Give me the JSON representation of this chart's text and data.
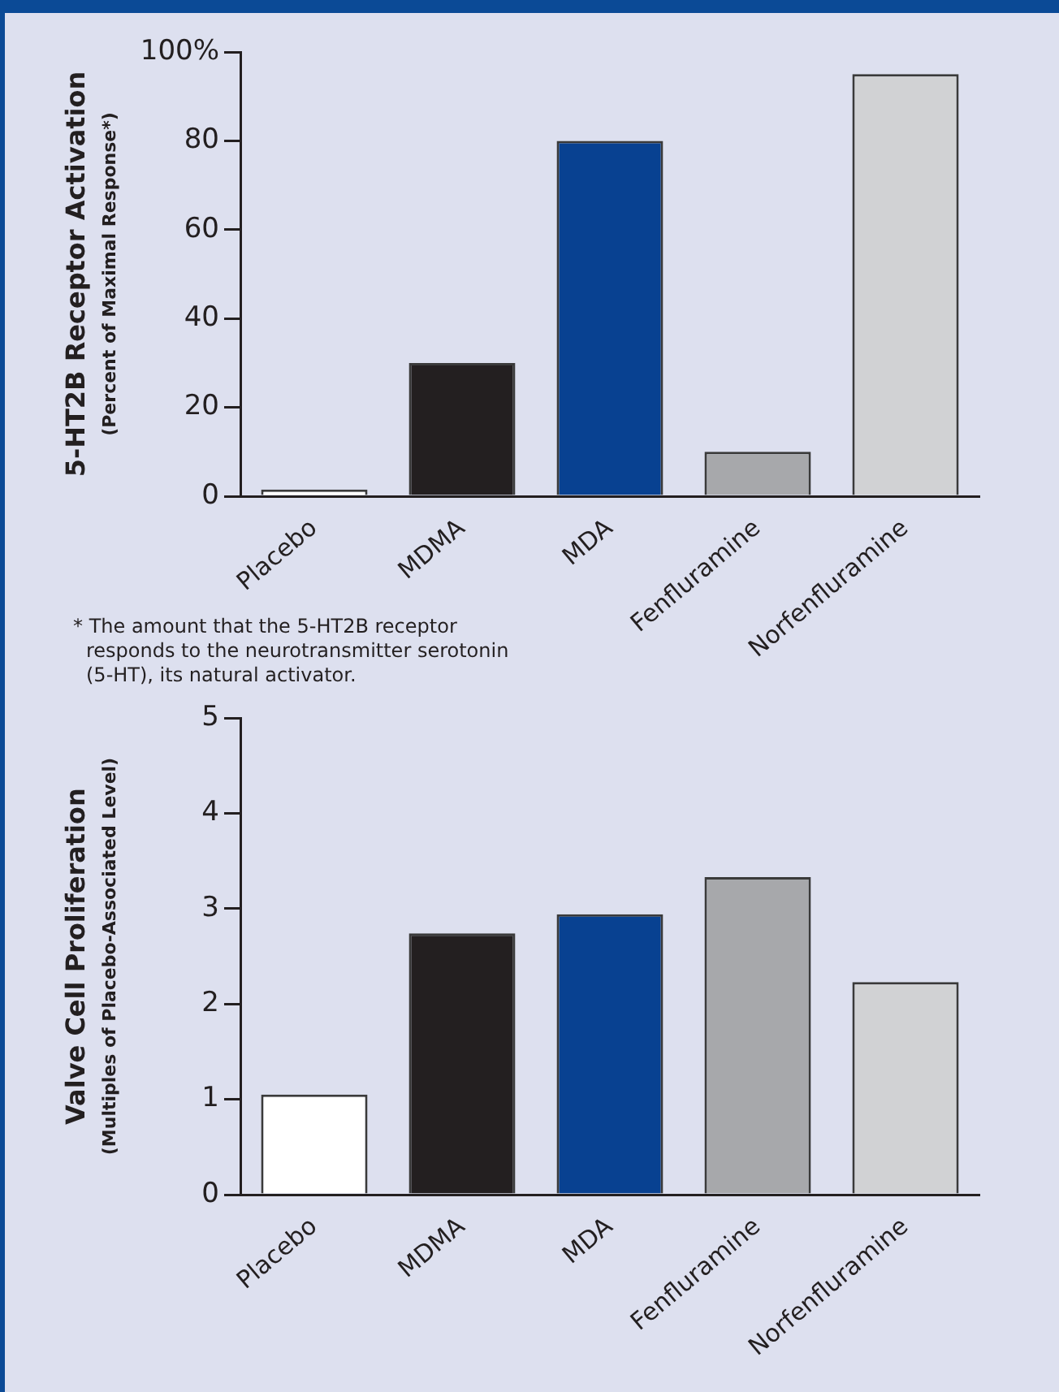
{
  "chart_data": [
    {
      "type": "bar",
      "ylabel": "5-HT2B Receptor Activation\n(Percent of Maximal Response*)",
      "categories": [
        "Placebo",
        "MDMA",
        "MDA",
        "Fenfluramine",
        "Norfenfluramine"
      ],
      "values": [
        1.5,
        30,
        80,
        10,
        95
      ],
      "colors": [
        "#ffffff",
        "#231f20",
        "#084191",
        "#a7a8ab",
        "#d1d2d4"
      ],
      "ylim": [
        0,
        100
      ],
      "yticks": [
        0,
        20,
        40,
        60,
        80,
        {
          "value": 100,
          "label": "100%"
        }
      ],
      "annotations": [
        "* The amount that the 5-HT2B receptor responds to the neurotransmitter serotonin (5-HT), its natural activator."
      ]
    },
    {
      "type": "bar",
      "ylabel": "Valve Cell Proliferation\n(Multiples of Placebo-Associated Level)",
      "categories": [
        "Placebo",
        "MDMA",
        "MDA",
        "Fenfluramine",
        "Norfenfluramine"
      ],
      "values": [
        1.05,
        2.74,
        2.94,
        3.33,
        2.23
      ],
      "colors": [
        "#ffffff",
        "#231f20",
        "#084191",
        "#a7a8ab",
        "#d1d2d4"
      ],
      "ylim": [
        0,
        5
      ],
      "yticks": [
        0,
        1,
        2,
        3,
        4,
        5
      ]
    }
  ]
}
